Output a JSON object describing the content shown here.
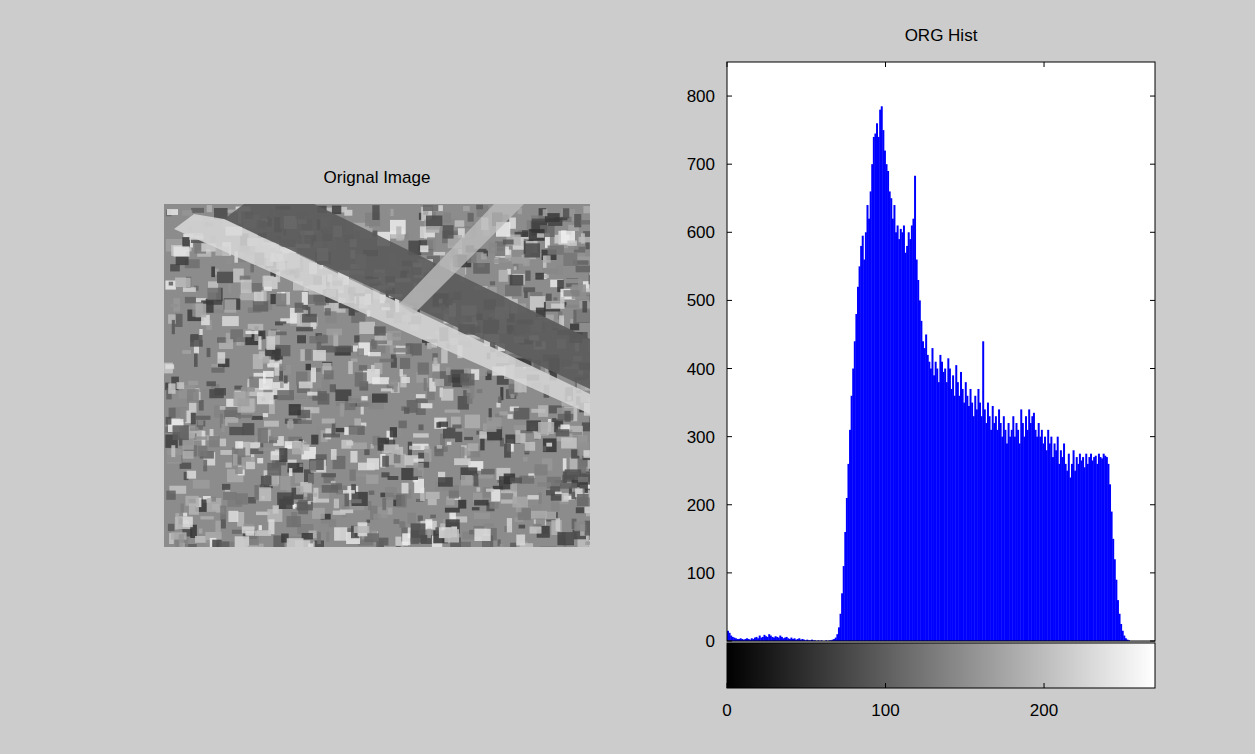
{
  "chart_data": [
    {
      "type": "image",
      "title": "Orignal Image"
    },
    {
      "type": "histogram",
      "title": "ORG Hist",
      "color": "#0000ff",
      "xlim": [
        0,
        270
      ],
      "ylim": [
        0,
        850
      ],
      "xticks": [
        0,
        100,
        200
      ],
      "yticks": [
        0,
        100,
        200,
        300,
        400,
        500,
        600,
        700,
        800
      ],
      "bins": [
        0,
        1,
        2,
        3,
        4,
        5,
        6,
        7,
        8,
        9,
        10,
        11,
        12,
        13,
        14,
        15,
        16,
        17,
        18,
        19,
        20,
        21,
        22,
        23,
        24,
        25,
        26,
        27,
        28,
        29,
        30,
        31,
        32,
        33,
        34,
        35,
        36,
        37,
        38,
        39,
        40,
        41,
        42,
        43,
        44,
        45,
        46,
        47,
        48,
        49,
        50,
        51,
        52,
        53,
        54,
        55,
        56,
        57,
        58,
        59,
        60,
        61,
        62,
        63,
        64,
        65,
        66,
        67,
        68,
        69,
        70,
        71,
        72,
        73,
        74,
        75,
        76,
        77,
        78,
        79,
        80,
        81,
        82,
        83,
        84,
        85,
        86,
        87,
        88,
        89,
        90,
        91,
        92,
        93,
        94,
        95,
        96,
        97,
        98,
        99,
        100,
        101,
        102,
        103,
        104,
        105,
        106,
        107,
        108,
        109,
        110,
        111,
        112,
        113,
        114,
        115,
        116,
        117,
        118,
        119,
        120,
        121,
        122,
        123,
        124,
        125,
        126,
        127,
        128,
        129,
        130,
        131,
        132,
        133,
        134,
        135,
        136,
        137,
        138,
        139,
        140,
        141,
        142,
        143,
        144,
        145,
        146,
        147,
        148,
        149,
        150,
        151,
        152,
        153,
        154,
        155,
        156,
        157,
        158,
        159,
        160,
        161,
        162,
        163,
        164,
        165,
        166,
        167,
        168,
        169,
        170,
        171,
        172,
        173,
        174,
        175,
        176,
        177,
        178,
        179,
        180,
        181,
        182,
        183,
        184,
        185,
        186,
        187,
        188,
        189,
        190,
        191,
        192,
        193,
        194,
        195,
        196,
        197,
        198,
        199,
        200,
        201,
        202,
        203,
        204,
        205,
        206,
        207,
        208,
        209,
        210,
        211,
        212,
        213,
        214,
        215,
        216,
        217,
        218,
        219,
        220,
        221,
        222,
        223,
        224,
        225,
        226,
        227,
        228,
        229,
        230,
        231,
        232,
        233,
        234,
        235,
        236,
        237,
        238,
        239,
        240,
        241,
        242,
        243,
        244,
        245,
        246,
        247,
        248,
        249,
        250,
        251,
        252,
        253,
        254,
        255,
        256
      ],
      "values": [
        15,
        12,
        8,
        6,
        5,
        4,
        3,
        3,
        4,
        3,
        2,
        3,
        4,
        3,
        2,
        4,
        3,
        5,
        6,
        4,
        8,
        5,
        6,
        9,
        7,
        6,
        10,
        8,
        6,
        5,
        7,
        6,
        5,
        8,
        6,
        4,
        5,
        6,
        4,
        3,
        5,
        3,
        4,
        2,
        3,
        4,
        2,
        3,
        2,
        1,
        2,
        1,
        1,
        2,
        1,
        1,
        0,
        1,
        0,
        1,
        0,
        0,
        1,
        0,
        1,
        1,
        2,
        3,
        5,
        10,
        20,
        40,
        70,
        110,
        160,
        210,
        260,
        310,
        360,
        400,
        440,
        480,
        520,
        550,
        580,
        595,
        560,
        600,
        640,
        620,
        660,
        700,
        740,
        745,
        760,
        740,
        780,
        785,
        750,
        720,
        700,
        690,
        660,
        650,
        620,
        640,
        600,
        610,
        590,
        605,
        600,
        610,
        570,
        580,
        600,
        590,
        610,
        620,
        683,
        560,
        530,
        500,
        470,
        440,
        430,
        450,
        420,
        410,
        400,
        430,
        390,
        410,
        400,
        380,
        420,
        410,
        395,
        400,
        380,
        415,
        400,
        370,
        390,
        360,
        405,
        380,
        360,
        395,
        370,
        350,
        380,
        360,
        345,
        370,
        350,
        330,
        360,
        340,
        370,
        350,
        330,
        440,
        340,
        320,
        350,
        330,
        310,
        345,
        320,
        330,
        310,
        340,
        320,
        300,
        330,
        310,
        290,
        320,
        300,
        310,
        330,
        300,
        320,
        310,
        290,
        340,
        320,
        300,
        330,
        310,
        340,
        320,
        330,
        335,
        310,
        300,
        320,
        300,
        310,
        290,
        300,
        280,
        310,
        290,
        300,
        270,
        290,
        280,
        300,
        260,
        280,
        270,
        290,
        260,
        250,
        275,
        240,
        260,
        280,
        250,
        270,
        260,
        275,
        265,
        270,
        255,
        275,
        260,
        270,
        275,
        265,
        270,
        272,
        260,
        275,
        270,
        268,
        275,
        272,
        270,
        260,
        230,
        190,
        150,
        120,
        90,
        60,
        40,
        25,
        15,
        8,
        4,
        2,
        1,
        0,
        0
      ]
    }
  ]
}
